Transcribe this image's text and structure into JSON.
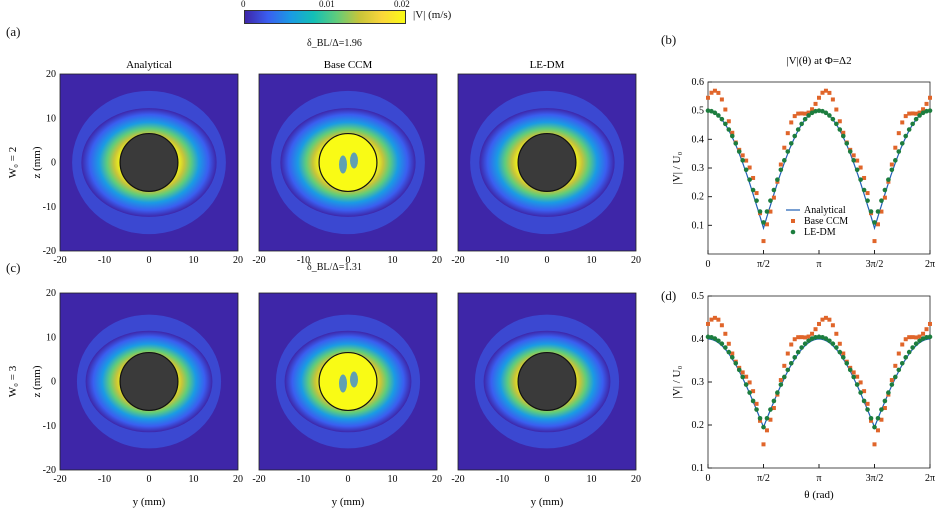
{
  "figure": {
    "panel_labels": [
      "(a)",
      "(b)",
      "(c)",
      "(d)"
    ],
    "colorbar": {
      "ticks": [
        "0",
        "0.01",
        "0.02"
      ],
      "label": "|V|  (m/s)",
      "colors": [
        "#3e26a8",
        "#3a5ef0",
        "#1a9be4",
        "#13bfb6",
        "#5fcc7c",
        "#c7c43a",
        "#fbd63b",
        "#f9fb15"
      ]
    },
    "row_titles": [
      "δ_BL/Δ=1.96",
      "δ_BL/Δ=1.31"
    ],
    "col_titles": [
      "Analytical",
      "Base CCM",
      "LE-DM"
    ],
    "row_ylabels": [
      "W₀ = 2",
      "W₀ = 3"
    ],
    "ylabel": "z (mm)",
    "xlabel": "y (mm)",
    "contour_ticks": [
      "-20",
      "-10",
      "0",
      "10",
      "20"
    ]
  },
  "chart_data": [
    {
      "type": "line",
      "panel": "(b)",
      "title": "|V|(θ) at Φ=Δ2",
      "xlabel": "",
      "ylabel": "|V| / U₀",
      "xlim": [
        0,
        6.2832
      ],
      "ylim": [
        0.0,
        0.6
      ],
      "x_ticks": [
        "0",
        "π/2",
        "π",
        "3π/2",
        "2π"
      ],
      "y_ticks": [
        "0.1",
        "0.2",
        "0.3",
        "0.4",
        "0.5",
        "0.6"
      ],
      "legend": [
        "Analytical",
        "Base CCM",
        "LE-DM"
      ],
      "legend_position": "bottom-center",
      "series": [
        {
          "name": "Analytical",
          "color": "#1f5fb5",
          "style": "line",
          "fn": "abscos",
          "params": [
            0.09,
            0.41
          ]
        },
        {
          "name": "Base CCM",
          "color": "#e0652a",
          "style": "square",
          "fn": "abscos_pow",
          "params": [
            0.045,
            0.5,
            0.8,
            0.035,
            0.52
          ]
        },
        {
          "name": "LE-DM",
          "color": "#1c7d3e",
          "style": "dot",
          "fn": "abscos",
          "params": [
            0.11,
            0.39
          ]
        }
      ],
      "markers": 64
    },
    {
      "type": "line",
      "panel": "(d)",
      "title": "",
      "xlabel": "θ (rad)",
      "ylabel": "|V| / U₀",
      "xlim": [
        0,
        6.2832
      ],
      "ylim": [
        0.1,
        0.5
      ],
      "x_ticks": [
        "0",
        "π/2",
        "π",
        "3π/2",
        "2π"
      ],
      "y_ticks": [
        "0.1",
        "0.2",
        "0.3",
        "0.4",
        "0.5"
      ],
      "series": [
        {
          "name": "Analytical",
          "color": "#1f5fb5",
          "style": "line",
          "fn": "abscos",
          "params": [
            0.195,
            0.205
          ]
        },
        {
          "name": "Base CCM",
          "color": "#e0652a",
          "style": "square",
          "fn": "abscos_pow",
          "params": [
            0.155,
            0.28,
            0.8,
            0.02,
            0.43
          ]
        },
        {
          "name": "LE-DM",
          "color": "#1c7d3e",
          "style": "dot",
          "fn": "abscos",
          "params": [
            0.195,
            0.21
          ]
        }
      ],
      "markers": 64
    }
  ]
}
